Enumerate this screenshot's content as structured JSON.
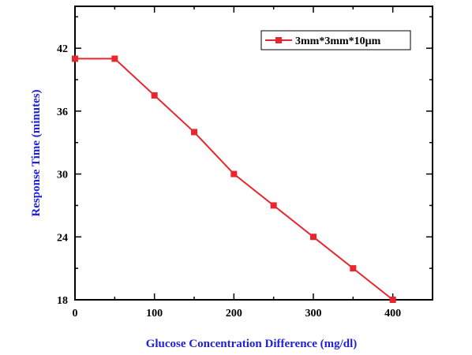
{
  "chart_data": {
    "type": "line",
    "xlabel": "Glucose Concentration Difference (mg/dl)",
    "ylabel": "Response Time (minutes)",
    "xlim": [
      0,
      450
    ],
    "ylim": [
      18,
      46
    ],
    "xticks": [
      0,
      100,
      200,
      300,
      400
    ],
    "yticks": [
      18,
      24,
      30,
      36,
      42
    ],
    "grid": false,
    "legend_position": "top-right",
    "series": [
      {
        "name": "3mm*3mm*10μm",
        "color": "#e8262e",
        "x": [
          0,
          50,
          100,
          150,
          200,
          250,
          300,
          350,
          400
        ],
        "y": [
          41,
          41,
          37.5,
          34,
          30,
          27,
          24,
          21,
          18
        ]
      }
    ]
  },
  "colors": {
    "axis_title": "#1f1fd8",
    "axis": "#000000"
  }
}
